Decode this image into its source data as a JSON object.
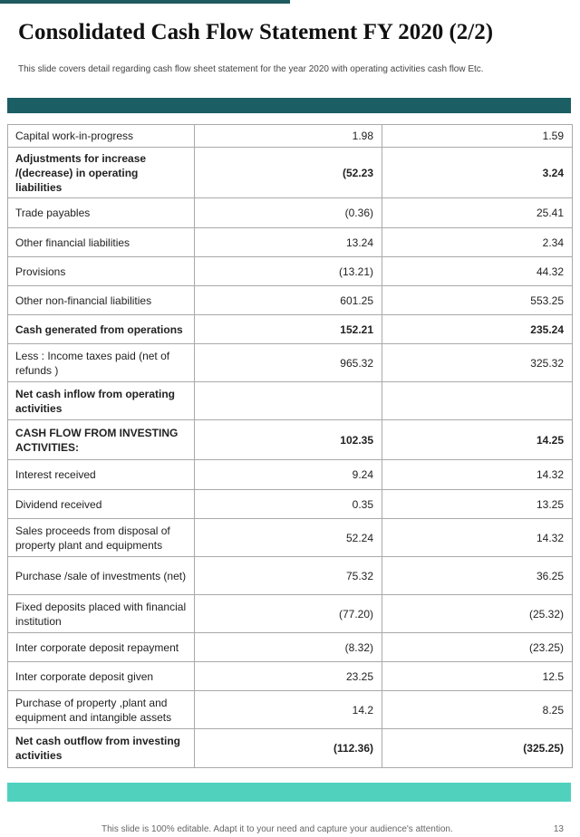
{
  "page": {
    "title": "Consolidated Cash Flow Statement FY 2020 (2/2)",
    "subtitle": "This slide covers detail regarding cash flow sheet statement for the year 2020 with operating activities cash flow Etc.",
    "footer_note": "This slide is 100% editable. Adapt it to your need and capture your audience's attention.",
    "page_number": "13"
  },
  "colors": {
    "header_bar": "#1b5e63",
    "footer_bar": "#4fd1bd",
    "top_accent": "#1e5a5e"
  },
  "table": {
    "rows": [
      {
        "label": "Capital work-in-progress",
        "v1": "1.98",
        "v2": "1.59",
        "bold": false
      },
      {
        "label": "Adjustments for increase /(decrease) in operating liabilities",
        "v1": "(52.23",
        "v2": "3.24",
        "bold": true
      },
      {
        "label": "Trade payables",
        "v1": "(0.36)",
        "v2": "25.41",
        "bold": false
      },
      {
        "label": "Other financial liabilities",
        "v1": "13.24",
        "v2": "2.34",
        "bold": false
      },
      {
        "label": "Provisions",
        "v1": "(13.21)",
        "v2": "44.32",
        "bold": false
      },
      {
        "label": "Other non-financial liabilities",
        "v1": "601.25",
        "v2": "553.25",
        "bold": false
      },
      {
        "label": "Cash generated from operations",
        "v1": "152.21",
        "v2": "235.24",
        "bold": true
      },
      {
        "label": "Less : Income taxes paid (net of refunds )",
        "v1": "965.32",
        "v2": "325.32",
        "bold": false
      },
      {
        "label": "Net  cash inflow from operating activities",
        "v1": "",
        "v2": "",
        "bold": true
      },
      {
        "label": "CASH FLOW FROM INVESTING ACTIVITIES:",
        "v1": "102.35",
        "v2": "14.25",
        "bold": true
      },
      {
        "label": "Interest received",
        "v1": "9.24",
        "v2": "14.32",
        "bold": false
      },
      {
        "label": "Dividend received",
        "v1": "0.35",
        "v2": "13.25",
        "bold": false
      },
      {
        "label": "Sales proceeds from disposal of property plant and equipments",
        "v1": "52.24",
        "v2": "14.32",
        "bold": false
      },
      {
        "label": "Purchase /sale of investments (net)",
        "v1": "75.32",
        "v2": "36.25",
        "bold": false
      },
      {
        "label": "Fixed deposits placed with financial institution",
        "v1": "(77.20)",
        "v2": "(25.32)",
        "bold": false
      },
      {
        "label": "Inter corporate deposit repayment",
        "v1": "(8.32)",
        "v2": "(23.25)",
        "bold": false
      },
      {
        "label": "Inter corporate deposit given",
        "v1": "23.25",
        "v2": "12.5",
        "bold": false
      },
      {
        "label": "Purchase of property ,plant and equipment and intangible assets",
        "v1": "14.2",
        "v2": "8.25",
        "bold": false
      },
      {
        "label": "Net cash outflow from investing activities",
        "v1": "(112.36)",
        "v2": "(325.25)",
        "bold": true
      }
    ]
  }
}
